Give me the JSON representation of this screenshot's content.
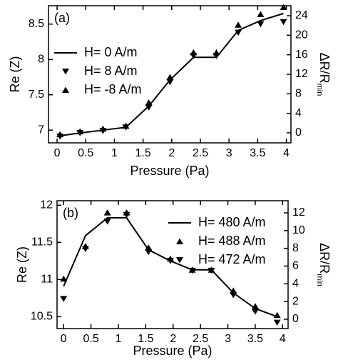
{
  "chart_data": [
    {
      "type": "line",
      "label": "(a)",
      "x_label": "Pressure (Pa)",
      "y_label": "Re (Z)",
      "y2_label": "ΔR/R",
      "y2_label_sub": "min",
      "xlim": [
        -0.15,
        4.08
      ],
      "xticks": [
        0,
        0.5,
        1,
        1.5,
        2,
        2.5,
        3,
        3.5,
        4
      ],
      "ylim": [
        6.82,
        8.76
      ],
      "yticks": [
        7,
        7.5,
        8,
        8.5
      ],
      "y2lim": [
        -2.05,
        26.05
      ],
      "y2ticks": [
        0,
        4,
        8,
        12,
        16,
        20,
        24
      ],
      "legend": "center left",
      "series": [
        {
          "name": "H= 0 A/m",
          "color": "#000000",
          "marker": "line",
          "x": [
            0.05,
            0.4,
            0.8,
            1.2,
            1.6,
            1.97,
            2.38,
            2.78,
            3.16,
            3.55,
            3.95
          ],
          "values": [
            6.92,
            6.96,
            7.0,
            7.04,
            7.34,
            7.71,
            8.03,
            8.03,
            8.41,
            8.55,
            8.65
          ]
        },
        {
          "name": "H= 8 A/m",
          "color": "#000000",
          "marker": "triangle-down",
          "x": [
            0.05,
            0.4,
            0.8,
            1.2,
            1.6,
            1.97,
            2.38,
            2.78,
            3.16,
            3.55,
            3.95
          ],
          "values": [
            6.91,
            6.96,
            6.99,
            7.04,
            7.32,
            7.68,
            8.05,
            8.05,
            8.38,
            8.5,
            8.53
          ]
        },
        {
          "name": "H= -8 A/m",
          "color": "#000000",
          "marker": "triangle-up",
          "x": [
            0.05,
            0.4,
            0.8,
            1.2,
            1.6,
            1.97,
            2.38,
            2.78,
            3.16,
            3.55,
            3.95
          ],
          "values": [
            6.94,
            6.98,
            7.02,
            7.06,
            7.39,
            7.75,
            8.1,
            8.1,
            8.49,
            8.64,
            8.74
          ]
        }
      ]
    },
    {
      "type": "line",
      "label": "(b)",
      "x_label": "Pressure (Pa)",
      "y_label": "Re (Z)",
      "y2_label": "ΔR/R",
      "y2_label_sub": "min",
      "xlim": [
        -0.12,
        4.1
      ],
      "xticks": [
        0,
        0.5,
        1,
        1.5,
        2,
        2.5,
        3,
        3.5,
        4
      ],
      "ylim": [
        10.34,
        12.06
      ],
      "yticks": [
        10.5,
        11,
        11.5,
        12
      ],
      "y2lim": [
        -1.05,
        13.37
      ],
      "y2ticks": [
        0,
        2,
        4,
        6,
        8,
        10,
        12
      ],
      "legend": "upper right",
      "series": [
        {
          "name": "H= 480 A/m",
          "color": "#000000",
          "marker": "line",
          "x": [
            0,
            0.4,
            0.8,
            1.15,
            1.55,
            1.95,
            2.35,
            2.7,
            3.1,
            3.5,
            3.9
          ],
          "values": [
            10.91,
            11.59,
            11.83,
            11.83,
            11.4,
            11.25,
            11.13,
            11.13,
            10.82,
            10.61,
            10.5
          ]
        },
        {
          "name": "H= 488 A/m",
          "color": "#000000",
          "marker": "triangle-up",
          "x": [
            0,
            0.4,
            0.8,
            1.15,
            1.55,
            1.95,
            2.35,
            2.7,
            3.1,
            3.5,
            3.9
          ],
          "values": [
            11.01,
            11.45,
            11.9,
            11.9,
            11.43,
            11.28,
            11.13,
            11.13,
            10.85,
            10.64,
            10.52
          ]
        },
        {
          "name": "H= 472 A/m",
          "color": "#000000",
          "marker": "triangle-down",
          "x": [
            0,
            0.4,
            0.8,
            1.15,
            1.55,
            1.95,
            2.35,
            2.7,
            3.1,
            3.5,
            3.9
          ],
          "values": [
            10.74,
            11.41,
            11.78,
            11.87,
            11.37,
            11.25,
            11.12,
            11.12,
            10.79,
            10.57,
            10.42
          ]
        }
      ]
    }
  ]
}
